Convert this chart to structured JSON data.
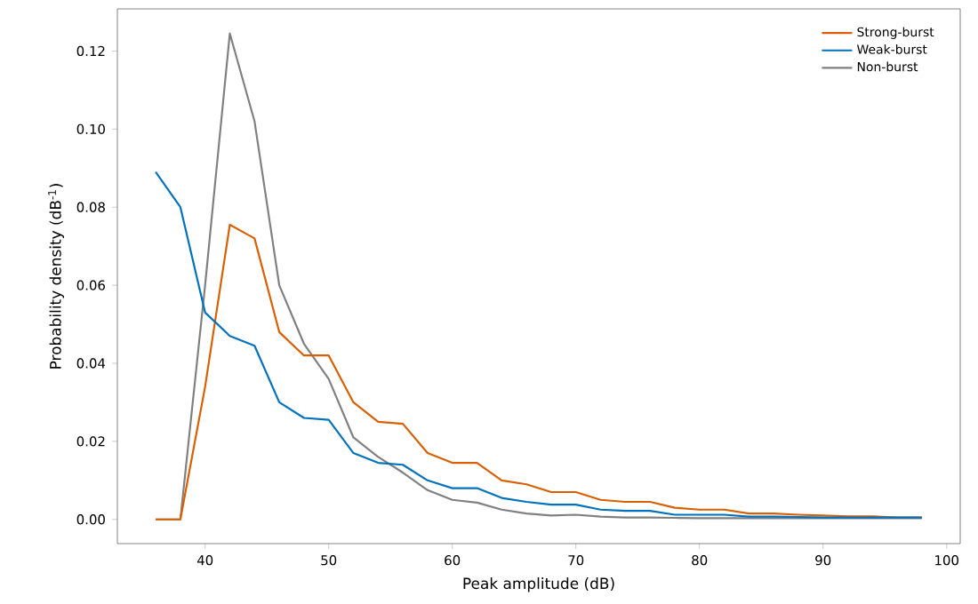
{
  "chart_data": {
    "type": "line",
    "xlabel": "Peak amplitude (dB)",
    "ylabel": "Probability density (dB$^{-1}$)",
    "x": [
      36,
      38,
      40,
      42,
      44,
      46,
      48,
      50,
      52,
      54,
      56,
      58,
      60,
      62,
      64,
      66,
      68,
      70,
      72,
      74,
      76,
      78,
      80,
      82,
      84,
      86,
      88,
      90,
      92,
      94,
      96,
      98
    ],
    "series": [
      {
        "name": "Strong-burst",
        "color": "#d95f02",
        "values": [
          0,
          0,
          0.034,
          0.0755,
          0.072,
          0.048,
          0.042,
          0.042,
          0.03,
          0.025,
          0.0245,
          0.017,
          0.0145,
          0.0145,
          0.01,
          0.009,
          0.007,
          0.007,
          0.005,
          0.0045,
          0.0045,
          0.003,
          0.0025,
          0.0025,
          0.0015,
          0.0015,
          0.0012,
          0.001,
          0.0008,
          0.0008,
          0.0005,
          0.0005
        ]
      },
      {
        "name": "Weak-burst",
        "color": "#0072bd",
        "values": [
          0.089,
          0.08,
          0.053,
          0.047,
          0.0445,
          0.03,
          0.026,
          0.0255,
          0.017,
          0.0145,
          0.014,
          0.01,
          0.008,
          0.008,
          0.0055,
          0.0045,
          0.0038,
          0.0038,
          0.0025,
          0.0022,
          0.0022,
          0.0012,
          0.0012,
          0.0012,
          0.0007,
          0.0007,
          0.0006,
          0.0005,
          0.0005,
          0.0005,
          0.0005,
          0.0005
        ]
      },
      {
        "name": "Non-burst",
        "color": "#808080",
        "values": [
          0,
          0,
          0.06,
          0.1245,
          0.102,
          0.06,
          0.045,
          0.036,
          0.021,
          0.016,
          0.012,
          0.0075,
          0.005,
          0.0043,
          0.0025,
          0.0015,
          0.001,
          0.0012,
          0.0007,
          0.0005,
          0.0005,
          0.0004,
          0.0003,
          0.0003,
          0.0003,
          0.0003,
          0.0003,
          0.0003,
          0.0003,
          0.0003,
          0.0003,
          0.0003
        ]
      }
    ],
    "xlim": [
      32.9,
      101.1
    ],
    "ylim": [
      -0.0062,
      0.1308
    ],
    "xticks": [
      40,
      50,
      60,
      70,
      80,
      90,
      100
    ],
    "yticks": [
      {
        "value": 0,
        "label": "0.00"
      },
      {
        "value": 0.02,
        "label": "0.02"
      },
      {
        "value": 0.04,
        "label": "0.04"
      },
      {
        "value": 0.06,
        "label": "0.06"
      },
      {
        "value": 0.08,
        "label": "0.08"
      },
      {
        "value": 0.1,
        "label": "0.10"
      },
      {
        "value": 0.12,
        "label": "0.12"
      }
    ],
    "legend": "top right",
    "grid": false,
    "marker": "none",
    "line_style": "solid"
  }
}
